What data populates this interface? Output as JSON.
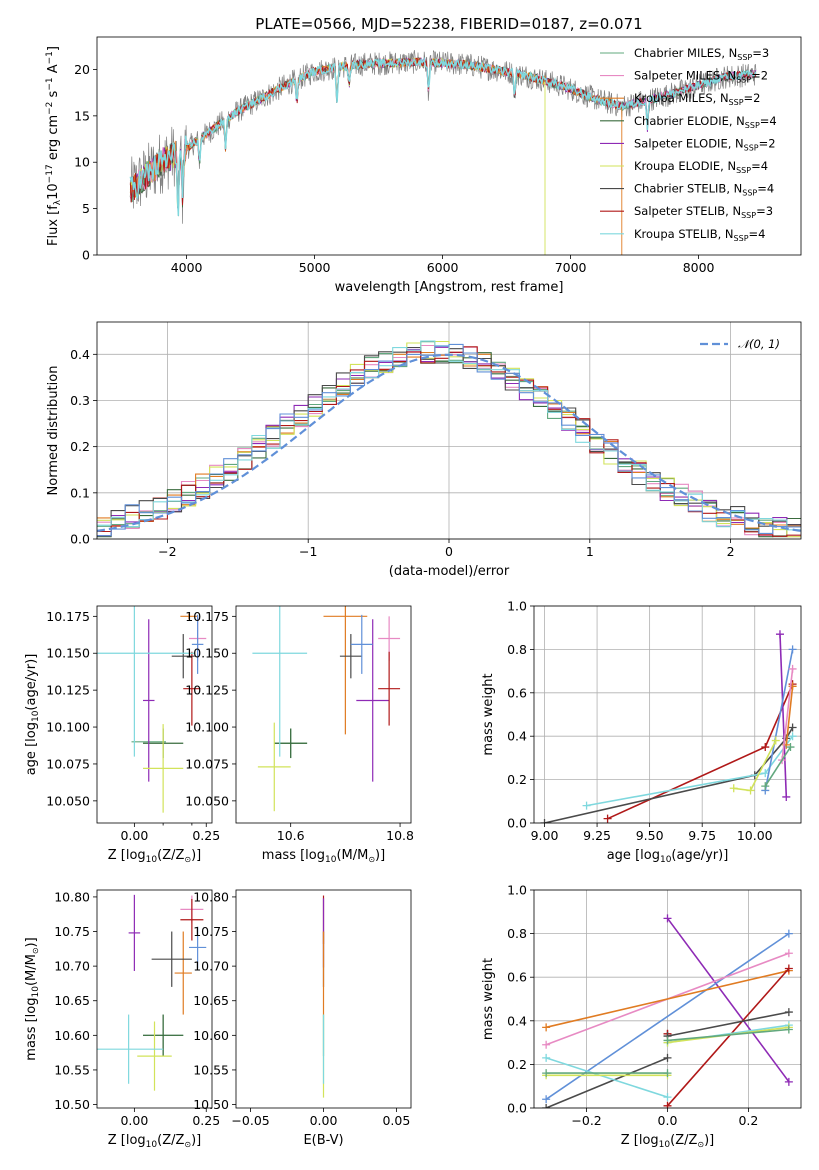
{
  "figure": {
    "title": "PLATE=0566, MJD=52238, FIBERID=0187, z=0.071"
  },
  "models": [
    {
      "name": "Chabrier MILES, N",
      "sub": "SSP",
      "suffix": "=3",
      "color": "#62a87e"
    },
    {
      "name": "Salpeter MILES, N",
      "sub": "SSP",
      "suffix": "=2",
      "color": "#e78ac3"
    },
    {
      "name": "Kroupa MILES, N",
      "sub": "SSP",
      "suffix": "=2",
      "color": "#e07b22"
    },
    {
      "name": "Chabrier ELODIE, N",
      "sub": "SSP",
      "suffix": "=4",
      "color": "#3a6b3e"
    },
    {
      "name": "Salpeter ELODIE, N",
      "sub": "SSP",
      "suffix": "=2",
      "color": "#8e2ab5"
    },
    {
      "name": "Kroupa ELODIE, N",
      "sub": "SSP",
      "suffix": "=4",
      "color": "#d2e35a"
    },
    {
      "name": "Chabrier STELIB, N",
      "sub": "SSP",
      "suffix": "=4",
      "color": "#4a4a4a"
    },
    {
      "name": "Salpeter STELIB, N",
      "sub": "SSP",
      "suffix": "=3",
      "color": "#b01818"
    },
    {
      "name": "Kroupa STELIB, N",
      "sub": "SSP",
      "suffix": "=4",
      "color": "#7fd8de"
    }
  ],
  "extra_colors": {
    "blue": "#6090d8",
    "data_gray": "#808080"
  },
  "chart_data": [
    {
      "id": "spectrum",
      "type": "line",
      "xlabel": "wavelength [Angstrom, rest frame]",
      "ylabel_parts": [
        "Flux [f",
        "λ",
        "10",
        "−17",
        " erg cm",
        "−2",
        " s",
        "−1",
        " A",
        "−1",
        "]"
      ],
      "xlim": [
        3300,
        8800
      ],
      "ylim": [
        0,
        23.5
      ],
      "xticks": [
        4000,
        5000,
        6000,
        7000,
        8000
      ],
      "yticks": [
        0,
        5,
        10,
        15,
        20
      ],
      "continuum_x": [
        3560,
        3800,
        4000,
        4200,
        4400,
        4600,
        4800,
        5000,
        5200,
        5400,
        5600,
        5800,
        6000,
        6200,
        6400,
        6600,
        6800,
        7000,
        7200,
        7400,
        7600,
        7800,
        8000,
        8200,
        8450
      ],
      "continuum_y": [
        7,
        10,
        11.5,
        13.5,
        15.5,
        17,
        18.5,
        19.8,
        20.3,
        20.6,
        20.7,
        20.8,
        20.7,
        20.5,
        20,
        19.5,
        18.8,
        17.9,
        16.8,
        16,
        16.7,
        17.4,
        18.3,
        19.2,
        19.5
      ],
      "absorption_lines": [
        {
          "x": 3933,
          "depth": 6
        },
        {
          "x": 3968,
          "depth": 5
        },
        {
          "x": 4101,
          "depth": 2.5
        },
        {
          "x": 4304,
          "depth": 3
        },
        {
          "x": 4861,
          "depth": 2.5
        },
        {
          "x": 5175,
          "depth": 3.5
        },
        {
          "x": 5270,
          "depth": 2
        },
        {
          "x": 5890,
          "depth": 3
        },
        {
          "x": 6563,
          "depth": 2.5
        },
        {
          "x": 7600,
          "depth": 3
        }
      ],
      "grid": false,
      "legend": "right"
    },
    {
      "id": "residuals",
      "type": "histogram",
      "xlabel": "(data-model)/error",
      "ylabel": "Normed distribution",
      "xlim": [
        -2.5,
        2.5
      ],
      "ylim": [
        0,
        0.47
      ],
      "xticks": [
        -2,
        -1,
        0,
        1,
        2
      ],
      "yticks": [
        0,
        0.1,
        0.2,
        0.3,
        0.4
      ],
      "bin_width": 0.1,
      "curve": {
        "label": "𝒩(0, 1)",
        "mean": 0,
        "sigma": 1,
        "color": "#6090d8"
      },
      "grid": true,
      "legend": "top-right"
    },
    {
      "id": "age_vs_Z",
      "type": "errorbar",
      "xlabel": "Z [log",
      "xlabel_sub": "10",
      "xlabel_rest": "(Z/Z",
      "xlabel_end": ")]",
      "ylabel": "age  [log",
      "ylabel_sub": "10",
      "ylabel_rest": "(age/yr)]",
      "xlim": [
        -0.13,
        0.27
      ],
      "ylim": [
        10.035,
        10.182
      ],
      "xticks": [
        0.0,
        0.1,
        0.2
      ],
      "xticklabels": [
        "0.00",
        "0.25"
      ],
      "xticks_labeled": [
        0.0,
        0.25
      ],
      "yticks": [
        10.05,
        10.075,
        10.1,
        10.125,
        10.15,
        10.175
      ],
      "points": [
        {
          "m": 0,
          "x": 0.05,
          "y": 10.09,
          "xe": 0.06,
          "ye": 0.0
        },
        {
          "m": 1,
          "x": 0.22,
          "y": 10.16,
          "xe": 0.03,
          "ye": 0.015
        },
        {
          "m": 2,
          "x": 0.19,
          "y": 10.175,
          "xe": 0.03,
          "ye": 0.002
        },
        {
          "m": 3,
          "x": 0.1,
          "y": 10.089,
          "xe": 0.07,
          "ye": 0.01
        },
        {
          "m": 4,
          "x": 0.05,
          "y": 10.118,
          "xe": 0.02,
          "ye": 0.055
        },
        {
          "m": 5,
          "x": 0.1,
          "y": 10.072,
          "xe": 0.07,
          "ye": 0.03
        },
        {
          "m": 6,
          "x": 0.17,
          "y": 10.148,
          "xe": 0.04,
          "ye": 0.015
        },
        {
          "m": 7,
          "x": 0.2,
          "y": 10.126,
          "xe": 0.03,
          "ye": 0.025
        },
        {
          "m": 8,
          "x": 0.0,
          "y": 10.15,
          "xe": 0.21,
          "ye": 0.07
        },
        {
          "m": "blue",
          "x": 0.22,
          "y": 10.156,
          "xe": 0.02,
          "ye": 0.02
        }
      ]
    },
    {
      "id": "age_vs_mass",
      "type": "errorbar",
      "xlabel": "mass [log",
      "xlabel_sub": "10",
      "xlabel_rest": "(M/M",
      "xlabel_end": ")]",
      "xlim": [
        10.5,
        10.82
      ],
      "ylim": [
        10.035,
        10.182
      ],
      "xticks": [
        10.6,
        10.8
      ],
      "yticks": [
        10.05,
        10.075,
        10.1,
        10.125,
        10.15,
        10.175
      ],
      "points": [
        {
          "m": 0,
          "x": 10.6,
          "y": 10.089,
          "xe": 0.03,
          "ye": 0.01
        },
        {
          "m": 1,
          "x": 10.78,
          "y": 10.16,
          "xe": 0.02,
          "ye": 0.015
        },
        {
          "m": 2,
          "x": 10.7,
          "y": 10.175,
          "xe": 0.04,
          "ye": 0.08
        },
        {
          "m": 3,
          "x": 10.6,
          "y": 10.089,
          "xe": 0.03,
          "ye": 0.01
        },
        {
          "m": 4,
          "x": 10.75,
          "y": 10.118,
          "xe": 0.03,
          "ye": 0.055
        },
        {
          "m": 5,
          "x": 10.57,
          "y": 10.073,
          "xe": 0.03,
          "ye": 0.03
        },
        {
          "m": 6,
          "x": 10.71,
          "y": 10.148,
          "xe": 0.02,
          "ye": 0.015
        },
        {
          "m": 7,
          "x": 10.78,
          "y": 10.126,
          "xe": 0.02,
          "ye": 0.025
        },
        {
          "m": 8,
          "x": 10.58,
          "y": 10.15,
          "xe": 0.05,
          "ye": 0.07
        },
        {
          "m": "blue",
          "x": 10.73,
          "y": 10.156,
          "xe": 0.02,
          "ye": 0.02
        }
      ]
    },
    {
      "id": "weight_vs_age",
      "type": "line",
      "xlabel": "age  [log",
      "xlabel_sub": "10",
      "xlabel_rest": "(age/yr)]",
      "ylabel": "mass weight",
      "xlim": [
        8.95,
        10.22
      ],
      "ylim": [
        0,
        1.0
      ],
      "xticks": [
        9.0,
        9.25,
        9.5,
        9.75,
        10.0
      ],
      "xticklabels": [
        "9.00",
        "9.25",
        "9.50",
        "9.75",
        "10.00"
      ],
      "yticks": [
        0,
        0.2,
        0.4,
        0.6,
        0.8,
        1.0
      ],
      "series": [
        {
          "m": 7,
          "x": [
            9.3,
            10.05,
            10.18
          ],
          "y": [
            0.02,
            0.35,
            0.64
          ]
        },
        {
          "m": 6,
          "x": [
            9.0,
            10.0,
            10.15,
            10.18
          ],
          "y": [
            0.0,
            0.22,
            0.39,
            0.44
          ]
        },
        {
          "m": 8,
          "x": [
            9.2,
            10.05,
            10.18
          ],
          "y": [
            0.08,
            0.23,
            0.4
          ]
        },
        {
          "m": 4,
          "x": [
            10.12,
            10.15
          ],
          "y": [
            0.87,
            0.12
          ]
        },
        {
          "m": "blue",
          "x": [
            10.05,
            10.18
          ],
          "y": [
            0.15,
            0.8
          ]
        },
        {
          "m": 5,
          "x": [
            9.9,
            9.98,
            10.1
          ],
          "y": [
            0.16,
            0.15,
            0.38
          ]
        },
        {
          "m": 2,
          "x": [
            10.15,
            10.18
          ],
          "y": [
            0.36,
            0.63
          ]
        },
        {
          "m": 1,
          "x": [
            10.13,
            10.18
          ],
          "y": [
            0.29,
            0.71
          ]
        },
        {
          "m": 0,
          "x": [
            10.05,
            10.17
          ],
          "y": [
            0.17,
            0.35
          ]
        }
      ],
      "grid": true
    },
    {
      "id": "mass_vs_Z",
      "type": "errorbar",
      "xlabel": "Z [log",
      "xlabel_sub": "10",
      "xlabel_rest": "(Z/Z",
      "xlabel_end": ")]",
      "ylabel": "mass [log",
      "ylabel_sub": "10",
      "ylabel_rest": "(M/M",
      "ylabel_end": ")]",
      "xlim": [
        -0.13,
        0.27
      ],
      "ylim": [
        10.495,
        10.81
      ],
      "xticks": [
        0.0,
        0.25
      ],
      "xticklabels": [
        "0.00",
        "0.25"
      ],
      "yticks": [
        10.5,
        10.55,
        10.6,
        10.65,
        10.7,
        10.75,
        10.8
      ],
      "points": [
        {
          "m": 0,
          "x": 0.1,
          "y": 10.6,
          "xe": 0.07,
          "ye": 0.03
        },
        {
          "m": 1,
          "x": 0.2,
          "y": 10.782,
          "xe": 0.04,
          "ye": 0.02
        },
        {
          "m": 2,
          "x": 0.17,
          "y": 10.69,
          "xe": 0.03,
          "ye": 0.06
        },
        {
          "m": 3,
          "x": 0.1,
          "y": 10.6,
          "xe": 0.07,
          "ye": 0.03
        },
        {
          "m": 4,
          "x": 0.0,
          "y": 10.748,
          "xe": 0.02,
          "ye": 0.055
        },
        {
          "m": 5,
          "x": 0.07,
          "y": 10.57,
          "xe": 0.06,
          "ye": 0.05
        },
        {
          "m": 6,
          "x": 0.13,
          "y": 10.71,
          "xe": 0.07,
          "ye": 0.04
        },
        {
          "m": 7,
          "x": 0.2,
          "y": 10.767,
          "xe": 0.04,
          "ye": 0.03
        },
        {
          "m": 8,
          "x": -0.02,
          "y": 10.58,
          "xe": 0.12,
          "ye": 0.05
        },
        {
          "m": "blue",
          "x": 0.22,
          "y": 10.727,
          "xe": 0.03,
          "ye": 0.03
        }
      ]
    },
    {
      "id": "mass_vs_EBV",
      "type": "errorbar",
      "xlabel": "E(B-V)",
      "xlim": [
        -0.06,
        0.06
      ],
      "ylim": [
        10.495,
        10.81
      ],
      "xticks": [
        -0.05,
        0.0,
        0.05
      ],
      "xticklabels": [
        "−0.05",
        "0.00",
        "0.05"
      ],
      "yticks": [
        10.5,
        10.55,
        10.6,
        10.65,
        10.7,
        10.75,
        10.8
      ],
      "points": [
        {
          "m": 7,
          "x": 0.0,
          "y": 10.767,
          "xe": 0.0,
          "ye": 0.035
        },
        {
          "m": 4,
          "x": 0.0,
          "y": 10.748,
          "xe": 0.0,
          "ye": 0.05
        },
        {
          "m": 6,
          "x": 0.0,
          "y": 10.71,
          "xe": 0.0,
          "ye": 0.04
        },
        {
          "m": 2,
          "x": 0.0,
          "y": 10.69,
          "xe": 0.0,
          "ye": 0.06
        },
        {
          "m": 0,
          "x": 0.0,
          "y": 10.6,
          "xe": 0.0,
          "ye": 0.03
        },
        {
          "m": 5,
          "x": 0.0,
          "y": 10.57,
          "xe": 0.0,
          "ye": 0.06
        },
        {
          "m": 8,
          "x": 0.0,
          "y": 10.58,
          "xe": 0.0,
          "ye": 0.05
        }
      ]
    },
    {
      "id": "weight_vs_Z",
      "type": "line",
      "xlabel": "Z [log",
      "xlabel_sub": "10",
      "xlabel_rest": "(Z/Z",
      "xlabel_end": ")]",
      "ylabel": "mass weight",
      "xlim": [
        -0.33,
        0.33
      ],
      "ylim": [
        0,
        1.0
      ],
      "xticks": [
        -0.2,
        0.0,
        0.2
      ],
      "xticklabels": [
        "−0.2",
        "0.0",
        "0.2"
      ],
      "yticks": [
        0,
        0.2,
        0.4,
        0.6,
        0.8,
        1.0
      ],
      "series": [
        {
          "m": 4,
          "x": [
            0.0,
            0.3
          ],
          "y": [
            0.87,
            0.12
          ]
        },
        {
          "m": "blue",
          "x": [
            -0.3,
            0.3
          ],
          "y": [
            0.04,
            0.8
          ]
        },
        {
          "m": 1,
          "x": [
            -0.3,
            0.3
          ],
          "y": [
            0.29,
            0.71
          ]
        },
        {
          "m": 2,
          "x": [
            -0.3,
            0.3
          ],
          "y": [
            0.37,
            0.63
          ]
        },
        {
          "m": 7,
          "x": [
            0.0,
            0.3
          ],
          "y": [
            0.01,
            0.64
          ]
        },
        {
          "m": 7,
          "x": [
            0.0,
            0.0
          ],
          "y": [
            0.34,
            0.34
          ]
        },
        {
          "m": 6,
          "x": [
            0.0,
            0.3
          ],
          "y": [
            0.33,
            0.44
          ]
        },
        {
          "m": 6,
          "x": [
            -0.3,
            0.0
          ],
          "y": [
            0.0,
            0.23
          ]
        },
        {
          "m": 8,
          "x": [
            -0.3,
            0.0
          ],
          "y": [
            0.23,
            0.05
          ]
        },
        {
          "m": 8,
          "x": [
            0.0,
            0.3
          ],
          "y": [
            0.3,
            0.38
          ]
        },
        {
          "m": 5,
          "x": [
            -0.3,
            0.0
          ],
          "y": [
            0.15,
            0.15
          ]
        },
        {
          "m": 5,
          "x": [
            0.0,
            0.3
          ],
          "y": [
            0.3,
            0.37
          ]
        },
        {
          "m": 0,
          "x": [
            -0.3,
            0.0
          ],
          "y": [
            0.16,
            0.16
          ]
        },
        {
          "m": 0,
          "x": [
            0.0,
            0.3
          ],
          "y": [
            0.31,
            0.36
          ]
        }
      ],
      "grid": true
    }
  ]
}
